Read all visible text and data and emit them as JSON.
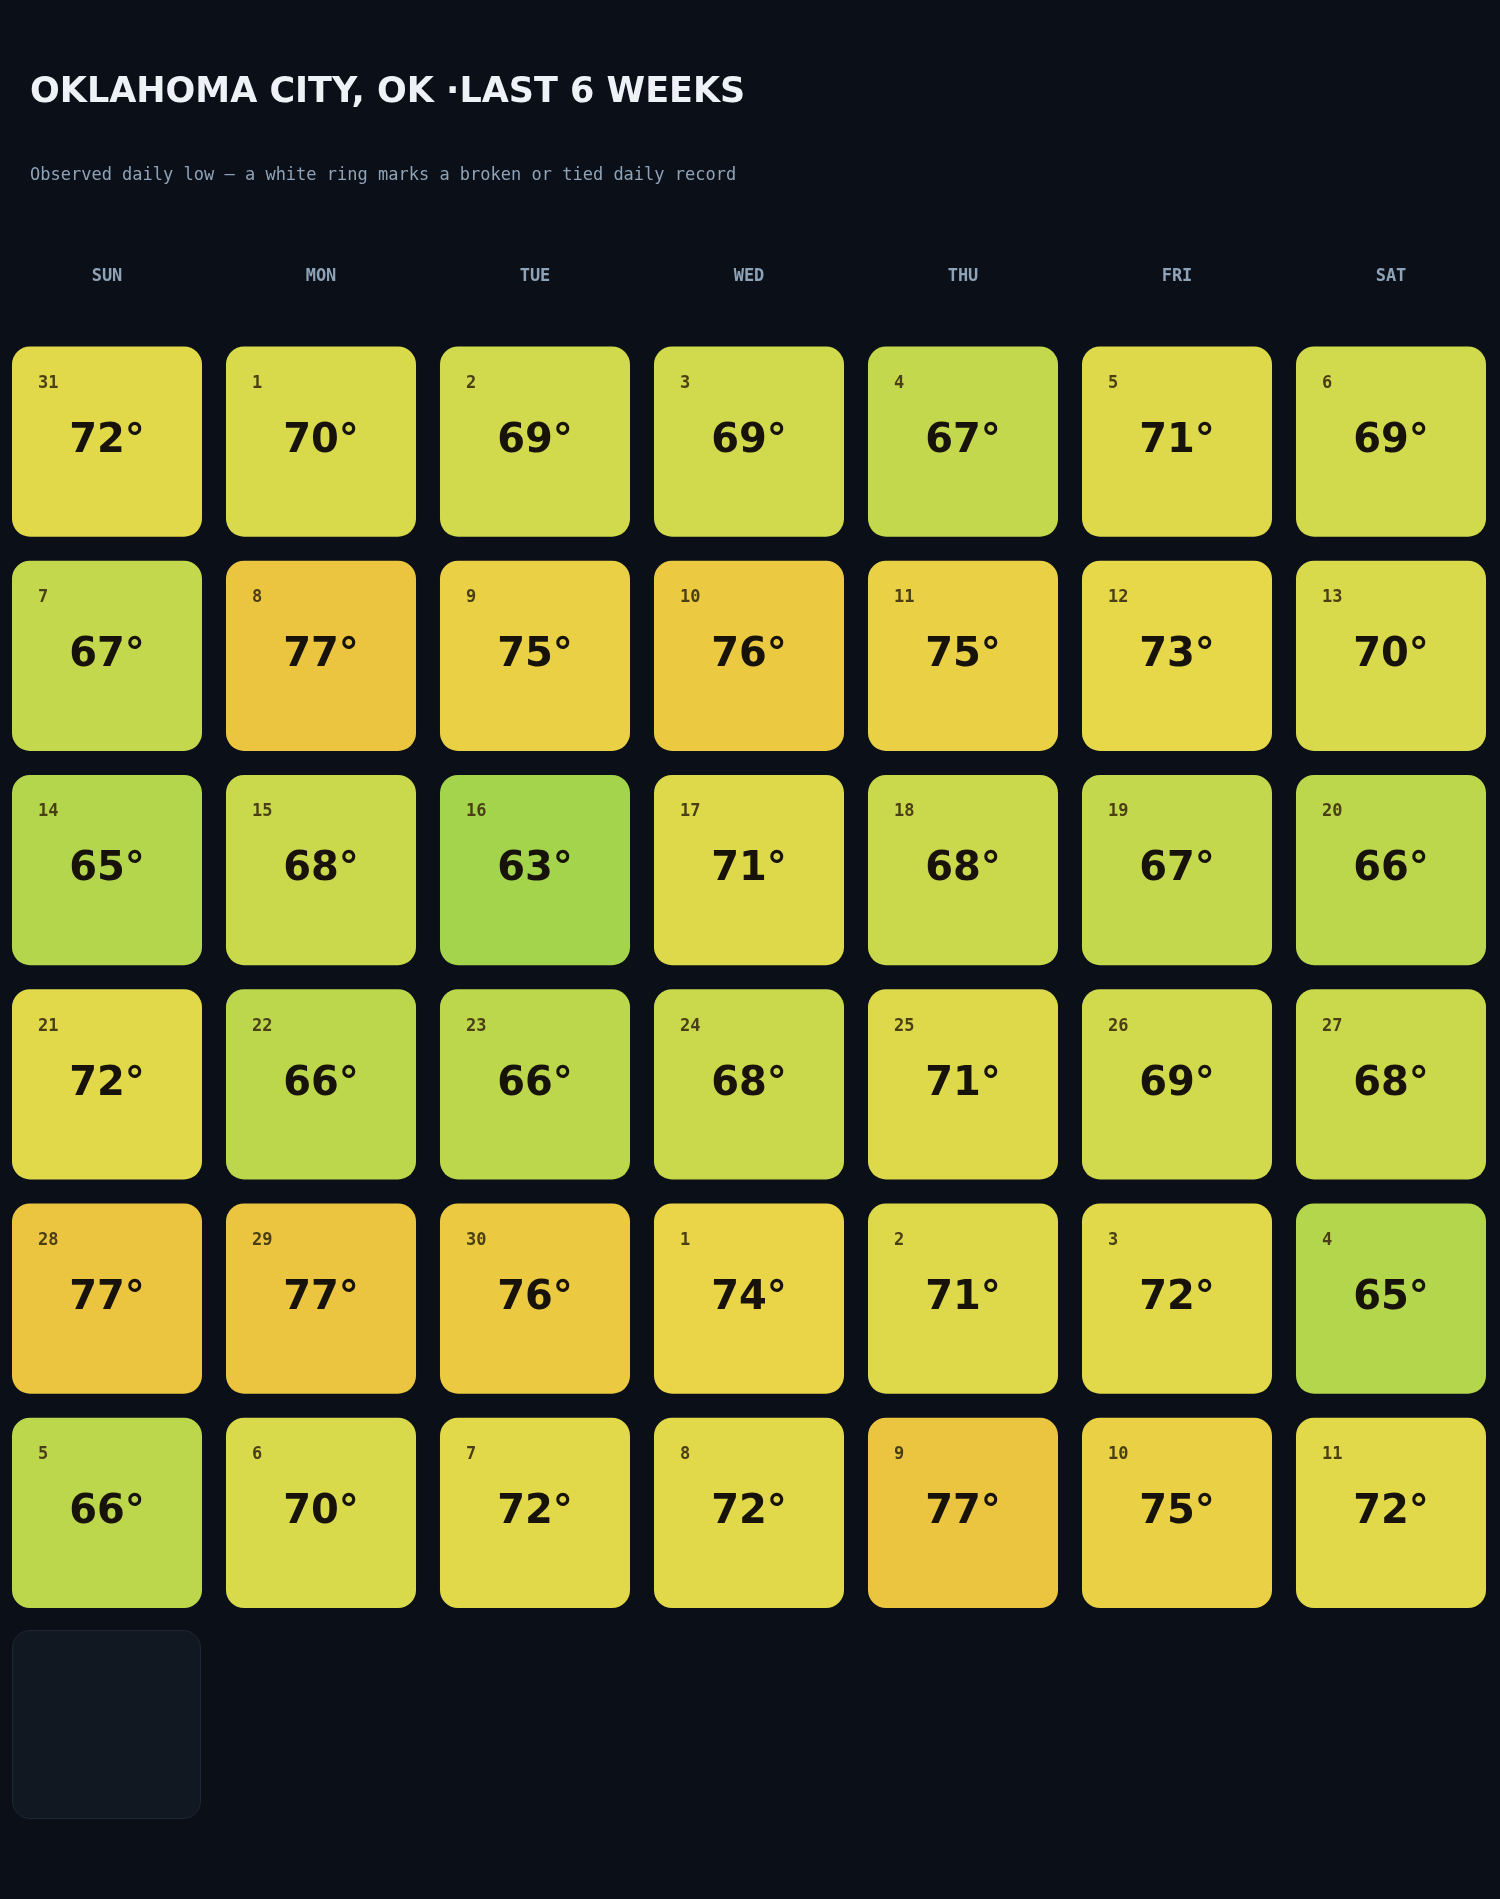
{
  "chart_data": {
    "type": "heatmap",
    "title": "OKLAHOMA CITY, OK ·LAST 6 WEEKS",
    "subtitle": "Observed daily low — a white ring marks a broken or tied daily record",
    "categories": [
      "SUN",
      "MON",
      "TUE",
      "WED",
      "THU",
      "FRI",
      "SAT"
    ],
    "y_categories": [
      null,
      null,
      null,
      null,
      null,
      null
    ],
    "colors": [
      "#a3d44c",
      "#c0d84c",
      "#d8da4c",
      "#e8d848",
      "#ecc540"
    ],
    "tick_labels": "x",
    "cells": [
      [
        72,
        70,
        69,
        69,
        67,
        71,
        69
      ],
      [
        67,
        77,
        75,
        76,
        75,
        73,
        70
      ],
      [
        65,
        68,
        63,
        71,
        68,
        67,
        66
      ],
      [
        72,
        66,
        66,
        68,
        71,
        69,
        68
      ],
      [
        77,
        77,
        76,
        74,
        71,
        72,
        65
      ],
      [
        66,
        70,
        72,
        72,
        77,
        75,
        72
      ]
    ],
    "cell_labels": [
      [
        "72°",
        "70°",
        "69°",
        "69°",
        "67°",
        "71°",
        "69°"
      ],
      [
        "67°",
        "77°",
        "75°",
        "76°",
        "75°",
        "73°",
        "70°"
      ],
      [
        "65°",
        "68°",
        "63°",
        "71°",
        "68°",
        "67°",
        "66°"
      ],
      [
        "72°",
        "66°",
        "66°",
        "68°",
        "71°",
        "69°",
        "68°"
      ],
      [
        "77°",
        "77°",
        "76°",
        "74°",
        "71°",
        "72°",
        "65°"
      ],
      [
        "66°",
        "70°",
        "72°",
        "72°",
        "77°",
        "75°",
        "72°"
      ]
    ],
    "annotations": [
      "31",
      "1",
      "2",
      "3",
      "4",
      "5",
      "6",
      "7",
      "8",
      "9",
      "10",
      "11",
      "12",
      "13",
      "14",
      "15",
      "16",
      "17",
      "18",
      "19",
      "20",
      "21",
      "22",
      "23",
      "24",
      "25",
      "26",
      "27",
      "28",
      "29",
      "30",
      "1",
      "2",
      "3",
      "4",
      "5",
      "6",
      "7",
      "8",
      "9",
      "10",
      "11"
    ]
  }
}
